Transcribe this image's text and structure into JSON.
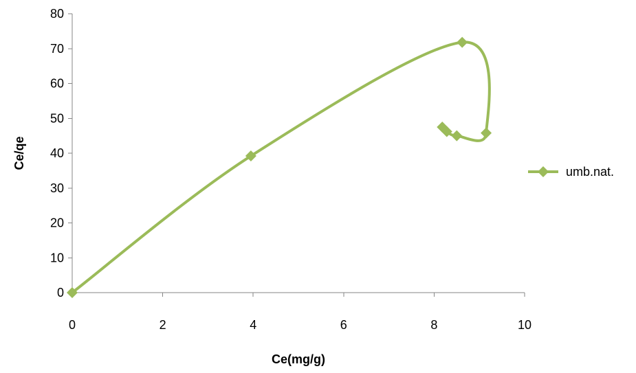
{
  "chart_data": {
    "type": "scatter",
    "title": "",
    "xlabel": "Ce(mg/g)",
    "ylabel": "Ce/qe",
    "xlim": [
      0,
      10
    ],
    "ylim": [
      0,
      80
    ],
    "x_ticks": [
      "0",
      "2",
      "4",
      "6",
      "8",
      "10"
    ],
    "y_ticks": [
      "0",
      "10",
      "20",
      "30",
      "40",
      "50",
      "60",
      "70",
      "80"
    ],
    "grid": false,
    "legend_position": "right",
    "smooth_line": true,
    "series": [
      {
        "name": "umb.nat.",
        "color": "#9bbb59",
        "marker": "diamond",
        "points": [
          {
            "x": 0,
            "y": 0
          },
          {
            "x": 3.95,
            "y": 39.2
          },
          {
            "x": 8.62,
            "y": 71.8
          },
          {
            "x": 9.15,
            "y": 45.8
          },
          {
            "x": 8.5,
            "y": 45.0
          },
          {
            "x": 8.28,
            "y": 46.2
          },
          {
            "x": 8.18,
            "y": 47.5
          }
        ]
      }
    ]
  }
}
